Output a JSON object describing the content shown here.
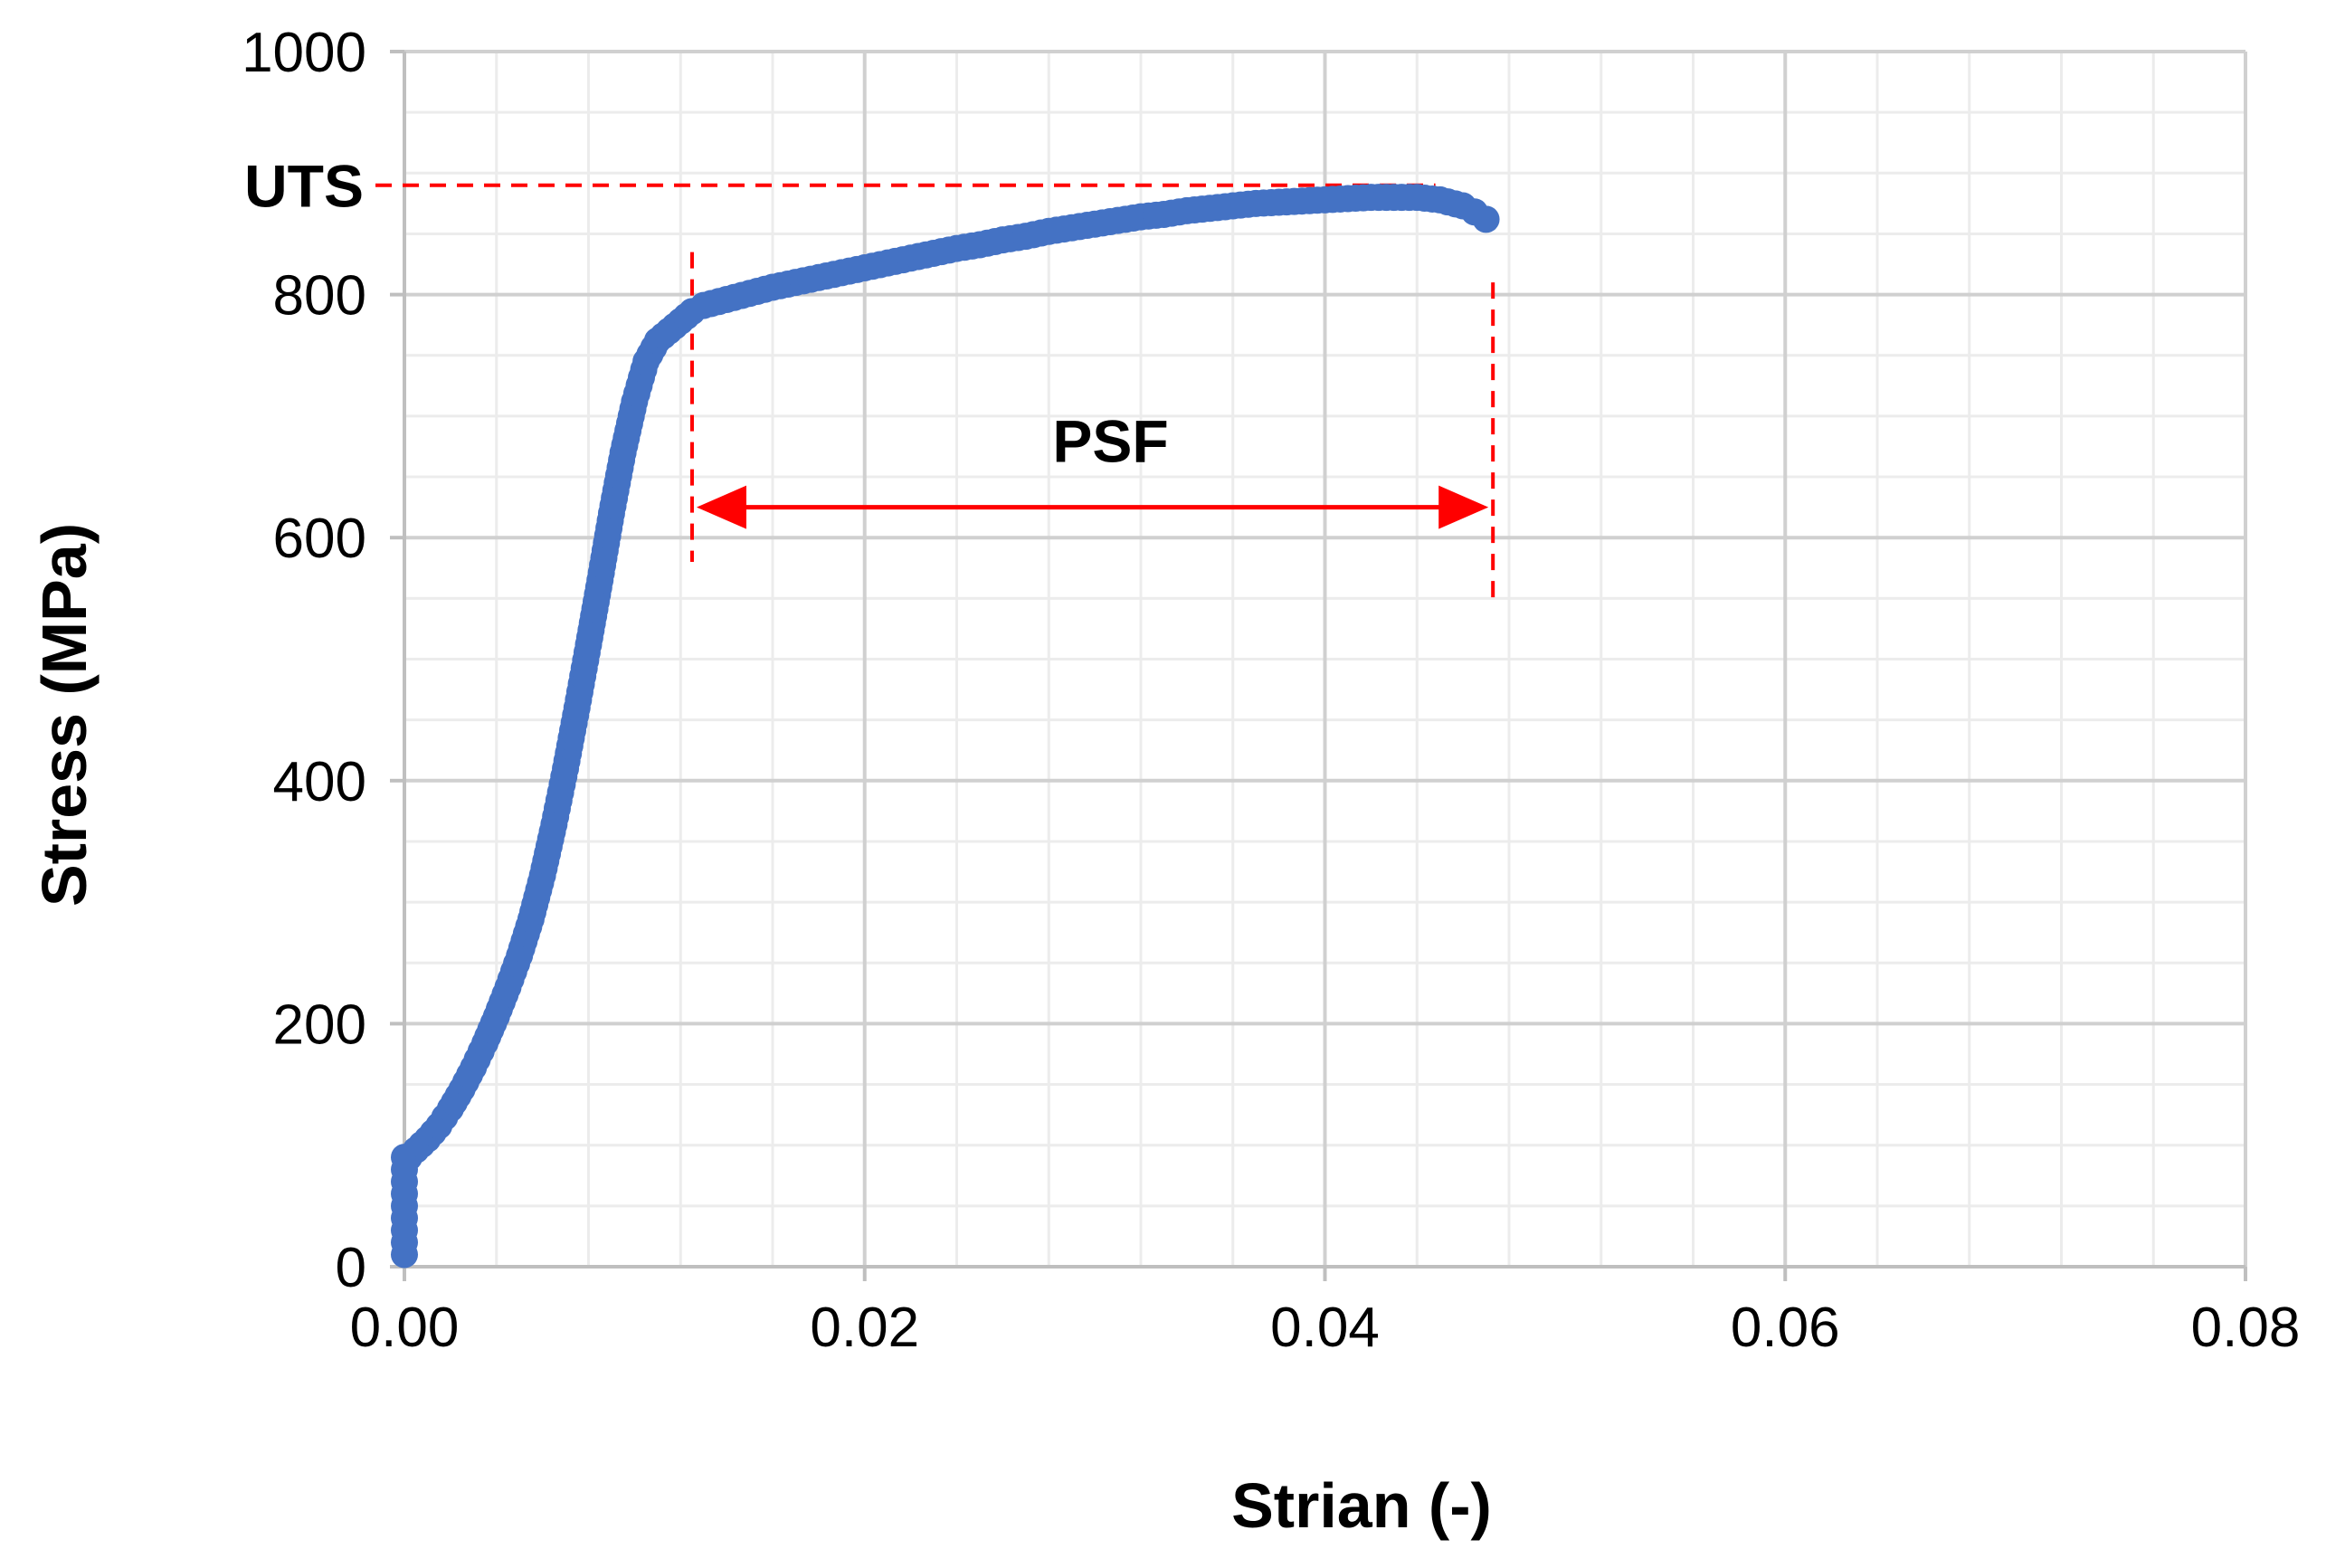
{
  "chart_data": {
    "type": "scatter",
    "title": "",
    "xlabel": "Strian (-)",
    "ylabel": "Stress (MPa)",
    "xlim": [
      0,
      0.08
    ],
    "ylim": [
      0,
      1000
    ],
    "x_ticks": [
      0,
      0.02,
      0.04,
      0.06,
      0.08
    ],
    "x_tick_labels": [
      "0.00",
      "0.02",
      "0.04",
      "0.06",
      "0.08"
    ],
    "y_ticks": [
      0,
      200,
      400,
      600,
      800,
      1000
    ],
    "y_tick_labels": [
      "0",
      "200",
      "400",
      "600",
      "800",
      "1000"
    ],
    "x_minor_step": 0.004,
    "y_minor_step": 50,
    "grid": true,
    "legend": "none",
    "series": [
      {
        "color": "#4472C4",
        "points": [
          [
            0,
            10
          ],
          [
            0,
            20
          ],
          [
            0,
            30
          ],
          [
            0,
            40
          ],
          [
            0,
            50
          ],
          [
            0,
            60
          ],
          [
            0,
            70
          ],
          [
            0,
            80
          ],
          [
            0,
            90
          ],
          [
            0.0002,
            90
          ],
          [
            0.0005,
            96
          ],
          [
            0.001,
            105
          ],
          [
            0.0015,
            116
          ],
          [
            0.002,
            130
          ],
          [
            0.0025,
            146
          ],
          [
            0.003,
            164
          ],
          [
            0.0035,
            184
          ],
          [
            0.004,
            206
          ],
          [
            0.0045,
            230
          ],
          [
            0.005,
            256
          ],
          [
            0.0055,
            286
          ],
          [
            0.006,
            322
          ],
          [
            0.0065,
            364
          ],
          [
            0.007,
            410
          ],
          [
            0.0075,
            460
          ],
          [
            0.008,
            512
          ],
          [
            0.0085,
            565
          ],
          [
            0.009,
            620
          ],
          [
            0.0095,
            670
          ],
          [
            0.01,
            712
          ],
          [
            0.0105,
            745
          ],
          [
            0.011,
            762
          ],
          [
            0.0115,
            770
          ],
          [
            0.012,
            778
          ],
          [
            0.0125,
            786
          ],
          [
            0.013,
            791
          ],
          [
            0.014,
            796
          ],
          [
            0.015,
            801
          ],
          [
            0.016,
            806
          ],
          [
            0.017,
            810
          ],
          [
            0.018,
            814
          ],
          [
            0.019,
            818
          ],
          [
            0.02,
            822
          ],
          [
            0.021,
            826
          ],
          [
            0.022,
            830
          ],
          [
            0.023,
            834
          ],
          [
            0.024,
            838
          ],
          [
            0.025,
            841
          ],
          [
            0.026,
            845
          ],
          [
            0.027,
            848
          ],
          [
            0.028,
            852
          ],
          [
            0.029,
            855
          ],
          [
            0.03,
            858
          ],
          [
            0.031,
            861
          ],
          [
            0.032,
            864
          ],
          [
            0.033,
            866
          ],
          [
            0.034,
            869
          ],
          [
            0.035,
            871
          ],
          [
            0.036,
            873
          ],
          [
            0.037,
            875
          ],
          [
            0.038,
            876
          ],
          [
            0.039,
            877
          ],
          [
            0.04,
            878
          ],
          [
            0.041,
            879
          ],
          [
            0.042,
            880
          ],
          [
            0.043,
            880
          ],
          [
            0.044,
            880
          ],
          [
            0.045,
            878
          ],
          [
            0.046,
            873
          ],
          [
            0.0465,
            868
          ],
          [
            0.047,
            862
          ]
        ]
      }
    ],
    "annotations": {
      "uts": {
        "label": "UTS",
        "y": 890,
        "x_end": 0.0448,
        "color": "#FF0000"
      },
      "psf": {
        "label": "PSF",
        "x_start": 0.0125,
        "x_end": 0.0473,
        "arrow_y": 625,
        "line_y_bottom": 580,
        "line_y_top_left": 835,
        "line_y_top_right": 810,
        "color": "#FF0000"
      }
    }
  }
}
